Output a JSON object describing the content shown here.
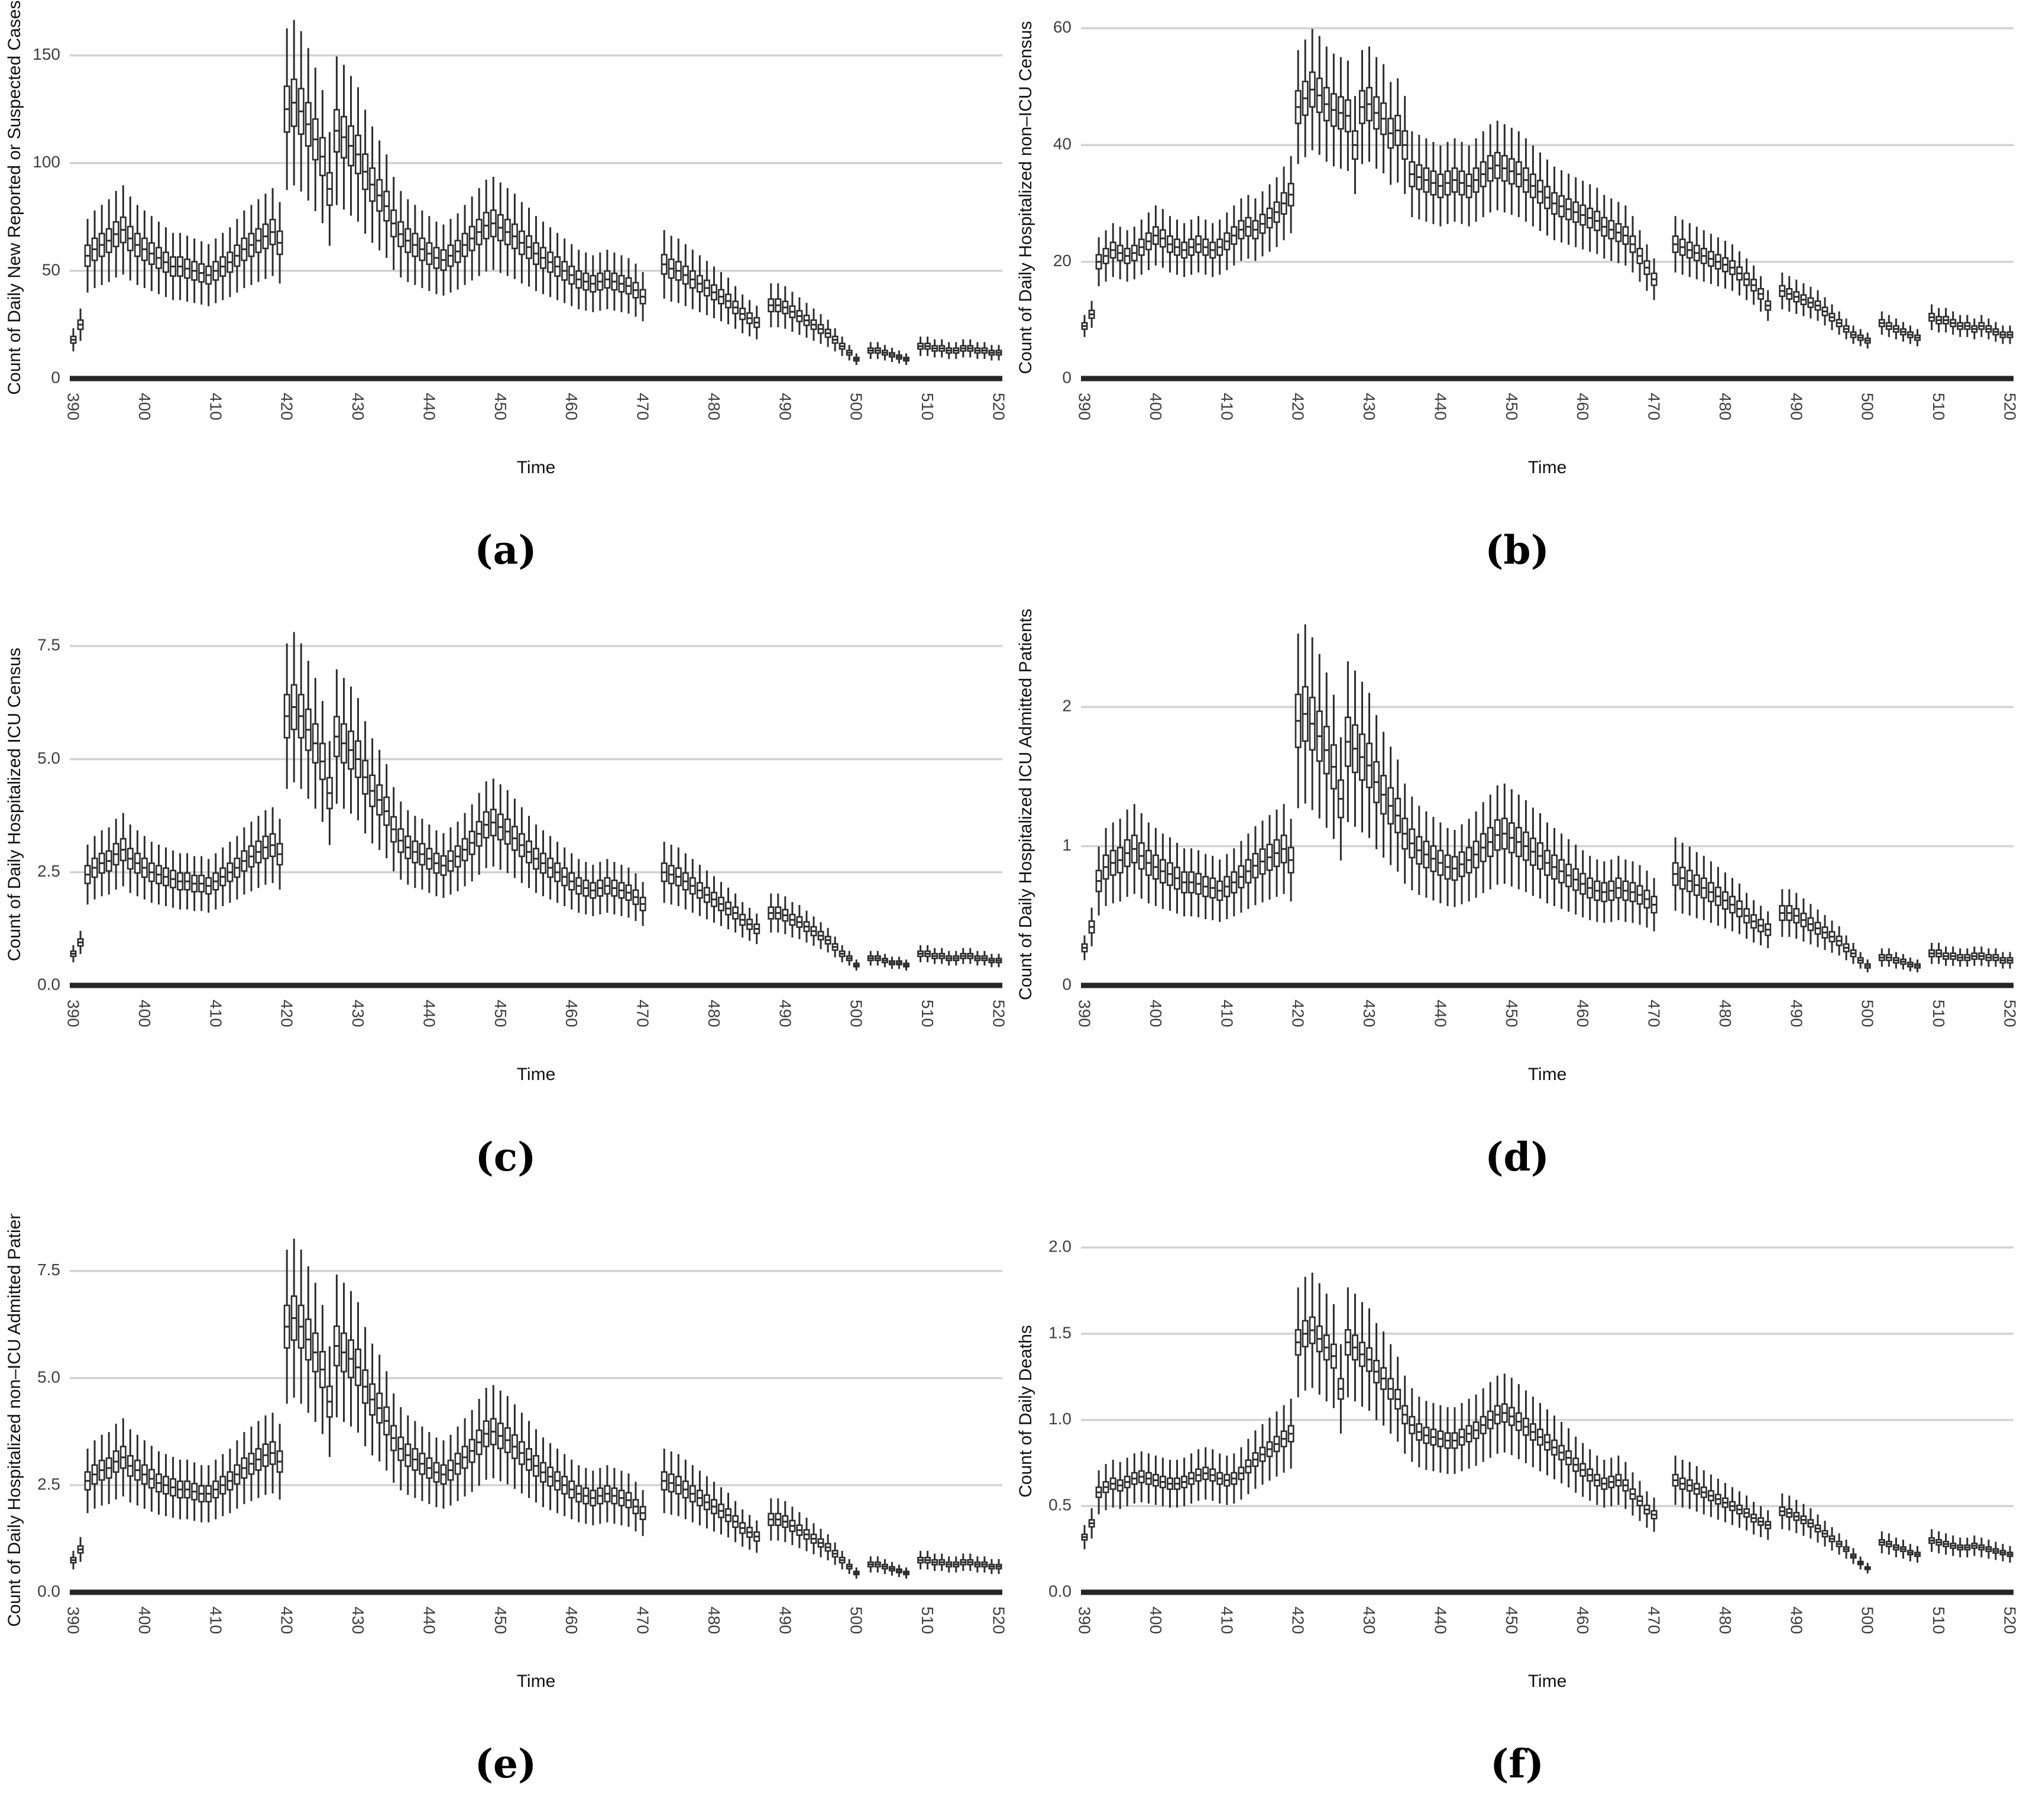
{
  "figure": {
    "background": "#ffffff",
    "layout": "2x3-grid-of-boxplot-panels",
    "captions": [
      "(a)",
      "(b)",
      "(c)",
      "(d)",
      "(e)",
      "(f)"
    ]
  },
  "style": {
    "box_color": "#2d2d2d",
    "grid_color": "#d2d2d2",
    "baseline_color": "#262626",
    "tick_color": "#3f3f3f",
    "title_color": "#111111",
    "box_fill": "#ffffff"
  },
  "chart_data": [
    {
      "id": "a",
      "caption": "(a)",
      "type": "boxplot",
      "xlabel": "Time",
      "ylabel": "Count of Daily New Reported or Suspected Cases",
      "x_start": 390,
      "x_step": 1,
      "x_end": 520,
      "xticks": [
        390,
        400,
        410,
        420,
        430,
        440,
        450,
        460,
        470,
        480,
        490,
        500,
        510,
        520
      ],
      "xtick_labels": [
        "390",
        "400",
        "410",
        "420",
        "430",
        "440",
        "450",
        "460",
        "470",
        "480",
        "490",
        "500",
        "510",
        "520"
      ],
      "yticks": [
        0,
        50,
        100,
        150
      ],
      "ytick_labels": [
        "0",
        "50",
        "100",
        "150"
      ],
      "ylim": [
        0,
        168
      ],
      "grid": "horizontal-only",
      "legend": "none",
      "whisker_frac": 0.3,
      "box_frac": 0.085,
      "gap_times": [
        471,
        472,
        487,
        501,
        508
      ],
      "medians": [
        18,
        25,
        57,
        60,
        62,
        64,
        67,
        69,
        65,
        62,
        60,
        58,
        56,
        54,
        52,
        52,
        51,
        50,
        49,
        48,
        50,
        52,
        54,
        57,
        60,
        62,
        64,
        66,
        68,
        63,
        125,
        128,
        124,
        118,
        111,
        103,
        88,
        115,
        112,
        108,
        104,
        96,
        90,
        85,
        80,
        72,
        67,
        64,
        62,
        60,
        58,
        56,
        55,
        57,
        59,
        62,
        65,
        68,
        71,
        72,
        70,
        68,
        66,
        63,
        61,
        58,
        56,
        54,
        52,
        50,
        48,
        46,
        45,
        44,
        45,
        46,
        45,
        44,
        43,
        41,
        38,
        null,
        null,
        53,
        51,
        50,
        48,
        46,
        44,
        42,
        40,
        38,
        36,
        33,
        30,
        28,
        26,
        null,
        34,
        34,
        33,
        31,
        29,
        27,
        25,
        23,
        21,
        18,
        15,
        12,
        9,
        null,
        13,
        13,
        12,
        11,
        10,
        9,
        null,
        15,
        15,
        14,
        14,
        13,
        13,
        14,
        14,
        13,
        13,
        12,
        12
      ]
    },
    {
      "id": "b",
      "caption": "(b)",
      "type": "boxplot",
      "xlabel": "Time",
      "ylabel": "Count of Daily Hospitalized non–ICU Census",
      "x_start": 390,
      "x_step": 1,
      "x_end": 520,
      "xticks": [
        390,
        400,
        410,
        420,
        430,
        440,
        450,
        460,
        470,
        480,
        490,
        500,
        510,
        520
      ],
      "xtick_labels": [
        "390",
        "400",
        "410",
        "420",
        "430",
        "440",
        "450",
        "460",
        "470",
        "480",
        "490",
        "500",
        "510",
        "520"
      ],
      "yticks": [
        0,
        20,
        40,
        60
      ],
      "ytick_labels": [
        "0",
        "20",
        "40",
        "60"
      ],
      "ylim": [
        0,
        62
      ],
      "grid": "horizontal-only",
      "legend": "none",
      "whisker_frac": 0.21,
      "box_frac": 0.06,
      "gap_times": [
        471,
        472,
        487,
        501,
        508
      ],
      "medians": [
        9,
        11,
        20,
        21,
        22,
        21.5,
        21,
        21.5,
        22.5,
        23.5,
        24.5,
        24,
        23,
        22.5,
        22,
        22.5,
        23,
        22.5,
        22,
        22.5,
        23.5,
        24.5,
        25.5,
        26,
        25.5,
        26.5,
        27.5,
        28.5,
        30,
        31.5,
        46.5,
        48,
        49.5,
        48.5,
        47,
        46,
        45.5,
        45,
        40,
        46.5,
        47,
        45.5,
        44.5,
        42,
        42.5,
        40,
        35,
        34.5,
        34,
        33.5,
        33,
        33.5,
        34,
        33.5,
        33,
        34,
        35,
        36,
        36.5,
        36,
        35.5,
        35,
        34,
        33,
        32,
        31,
        30,
        29.5,
        29,
        28.5,
        28,
        27.5,
        27,
        26,
        25.5,
        25,
        24.5,
        23,
        21,
        19,
        17,
        null,
        null,
        23,
        22.5,
        22,
        21.5,
        21,
        20.5,
        20,
        19.5,
        19,
        18,
        17,
        16,
        14.5,
        12.5,
        null,
        15,
        14.5,
        14,
        13.5,
        13,
        12.5,
        11.5,
        10.5,
        9.5,
        8.5,
        7.5,
        7,
        6.5,
        null,
        9.5,
        9,
        8.5,
        8,
        7.5,
        7,
        null,
        10.5,
        10,
        10,
        9.5,
        9,
        9,
        8.5,
        9,
        8.5,
        8,
        7.5,
        7.5
      ]
    },
    {
      "id": "c",
      "caption": "(c)",
      "type": "boxplot",
      "xlabel": "Time",
      "ylabel": "Count of Daily Hospitalized ICU Census",
      "x_start": 390,
      "x_step": 1,
      "x_end": 520,
      "xticks": [
        390,
        400,
        410,
        420,
        430,
        440,
        450,
        460,
        470,
        480,
        490,
        500,
        510,
        520
      ],
      "xtick_labels": [
        "390",
        "400",
        "410",
        "420",
        "430",
        "440",
        "450",
        "460",
        "470",
        "480",
        "490",
        "500",
        "510",
        "520"
      ],
      "yticks": [
        0,
        2.5,
        5,
        7.5
      ],
      "ytick_labels": [
        "0.0",
        "2.5",
        "5.0",
        "7.5"
      ],
      "ylim": [
        0,
        8.0
      ],
      "grid": "horizontal-only",
      "legend": "none",
      "whisker_frac": 0.27,
      "box_frac": 0.08,
      "gap_times": [
        471,
        472,
        487,
        501,
        508
      ],
      "medians": [
        0.7,
        0.95,
        2.45,
        2.6,
        2.7,
        2.75,
        2.9,
        3.0,
        2.8,
        2.7,
        2.6,
        2.5,
        2.45,
        2.4,
        2.35,
        2.3,
        2.3,
        2.25,
        2.25,
        2.2,
        2.3,
        2.4,
        2.5,
        2.6,
        2.75,
        2.85,
        2.95,
        3.05,
        3.1,
        2.9,
        5.95,
        6.15,
        5.95,
        5.65,
        5.35,
        4.95,
        4.25,
        5.5,
        5.35,
        5.2,
        5.0,
        4.6,
        4.3,
        4.1,
        3.85,
        3.45,
        3.2,
        3.05,
        2.95,
        2.9,
        2.8,
        2.7,
        2.65,
        2.75,
        2.85,
        3.0,
        3.15,
        3.35,
        3.55,
        3.6,
        3.5,
        3.4,
        3.25,
        3.1,
        2.95,
        2.8,
        2.7,
        2.6,
        2.5,
        2.4,
        2.3,
        2.2,
        2.15,
        2.1,
        2.15,
        2.2,
        2.15,
        2.1,
        2.05,
        1.95,
        1.8,
        null,
        null,
        2.5,
        2.45,
        2.4,
        2.3,
        2.2,
        2.1,
        2.0,
        1.9,
        1.8,
        1.7,
        1.6,
        1.45,
        1.35,
        1.25,
        null,
        1.6,
        1.6,
        1.55,
        1.45,
        1.4,
        1.3,
        1.2,
        1.1,
        1.0,
        0.85,
        0.7,
        0.6,
        0.45,
        null,
        0.6,
        0.6,
        0.55,
        0.5,
        0.5,
        0.45,
        null,
        0.7,
        0.7,
        0.65,
        0.65,
        0.6,
        0.6,
        0.65,
        0.65,
        0.6,
        0.6,
        0.55,
        0.55
      ]
    },
    {
      "id": "d",
      "caption": "(d)",
      "type": "boxplot",
      "xlabel": "Time",
      "ylabel": "Count of Daily Hospitalized ICU Admitted Patients",
      "x_start": 390,
      "x_step": 1,
      "x_end": 520,
      "xticks": [
        390,
        400,
        410,
        420,
        430,
        440,
        450,
        460,
        470,
        480,
        490,
        500,
        510,
        520
      ],
      "xtick_labels": [
        "390",
        "400",
        "410",
        "420",
        "430",
        "440",
        "450",
        "460",
        "470",
        "480",
        "490",
        "500",
        "510",
        "520"
      ],
      "yticks": [
        0,
        1,
        2
      ],
      "ytick_labels": [
        "0",
        "1",
        "2"
      ],
      "ylim": [
        0,
        2.6
      ],
      "grid": "horizontal-only",
      "legend": "none",
      "whisker_frac": 0.33,
      "box_frac": 0.1,
      "gap_times": [
        471,
        472,
        487,
        501,
        508
      ],
      "medians": [
        0.27,
        0.42,
        0.75,
        0.85,
        0.88,
        0.9,
        0.95,
        0.98,
        0.93,
        0.88,
        0.85,
        0.82,
        0.8,
        0.77,
        0.74,
        0.74,
        0.73,
        0.71,
        0.7,
        0.68,
        0.71,
        0.74,
        0.78,
        0.82,
        0.86,
        0.89,
        0.92,
        0.95,
        0.98,
        0.9,
        1.9,
        1.95,
        1.88,
        1.79,
        1.69,
        1.57,
        1.34,
        1.75,
        1.7,
        1.64,
        1.58,
        1.46,
        1.37,
        1.29,
        1.22,
        1.09,
        1.02,
        0.97,
        0.94,
        0.91,
        0.88,
        0.85,
        0.84,
        0.87,
        0.9,
        0.94,
        0.99,
        1.03,
        1.08,
        1.09,
        1.06,
        1.03,
        1.0,
        0.96,
        0.93,
        0.88,
        0.85,
        0.82,
        0.79,
        0.76,
        0.73,
        0.7,
        0.68,
        0.67,
        0.68,
        0.7,
        0.68,
        0.67,
        0.65,
        0.62,
        0.58,
        null,
        null,
        0.8,
        0.77,
        0.75,
        0.72,
        0.7,
        0.67,
        0.64,
        0.61,
        0.58,
        0.55,
        0.5,
        0.46,
        0.43,
        0.4,
        null,
        0.52,
        0.52,
        0.5,
        0.47,
        0.44,
        0.41,
        0.38,
        0.35,
        0.32,
        0.27,
        0.23,
        0.18,
        0.14,
        null,
        0.2,
        0.2,
        0.18,
        0.17,
        0.15,
        0.14,
        null,
        0.23,
        0.23,
        0.21,
        0.21,
        0.2,
        0.2,
        0.21,
        0.21,
        0.2,
        0.2,
        0.18,
        0.18
      ]
    },
    {
      "id": "e",
      "caption": "(e)",
      "type": "boxplot",
      "xlabel": "Time",
      "ylabel": "Count of Daily Hospitalized non–ICU Admitted Patients",
      "x_start": 390,
      "x_step": 1,
      "x_end": 520,
      "xticks": [
        390,
        400,
        410,
        420,
        430,
        440,
        450,
        460,
        470,
        480,
        490,
        500,
        510,
        520
      ],
      "xtick_labels": [
        "390",
        "400",
        "410",
        "420",
        "430",
        "440",
        "450",
        "460",
        "470",
        "480",
        "490",
        "500",
        "510",
        "520"
      ],
      "yticks": [
        0,
        2.5,
        5,
        7.5
      ],
      "ytick_labels": [
        "0.0",
        "2.5",
        "5.0",
        "7.5"
      ],
      "ylim": [
        0,
        8.45
      ],
      "grid": "horizontal-only",
      "legend": "none",
      "whisker_frac": 0.29,
      "box_frac": 0.08,
      "gap_times": [
        471,
        472,
        487,
        501,
        508
      ],
      "medians": [
        0.75,
        1.0,
        2.6,
        2.75,
        2.85,
        2.9,
        3.05,
        3.15,
        2.95,
        2.85,
        2.75,
        2.65,
        2.55,
        2.5,
        2.45,
        2.4,
        2.4,
        2.35,
        2.3,
        2.3,
        2.4,
        2.5,
        2.6,
        2.75,
        2.9,
        3.0,
        3.1,
        3.2,
        3.25,
        3.05,
        6.2,
        6.4,
        6.2,
        5.9,
        5.6,
        5.2,
        4.45,
        5.75,
        5.6,
        5.45,
        5.25,
        4.8,
        4.5,
        4.3,
        4.0,
        3.6,
        3.35,
        3.2,
        3.1,
        3.0,
        2.9,
        2.8,
        2.75,
        2.85,
        3.0,
        3.15,
        3.3,
        3.5,
        3.7,
        3.75,
        3.65,
        3.55,
        3.4,
        3.25,
        3.1,
        2.95,
        2.8,
        2.7,
        2.6,
        2.5,
        2.4,
        2.3,
        2.25,
        2.2,
        2.25,
        2.3,
        2.25,
        2.2,
        2.15,
        2.0,
        1.85,
        null,
        null,
        2.6,
        2.55,
        2.5,
        2.4,
        2.3,
        2.2,
        2.1,
        2.0,
        1.9,
        1.8,
        1.65,
        1.5,
        1.4,
        1.3,
        null,
        1.7,
        1.7,
        1.65,
        1.55,
        1.45,
        1.35,
        1.25,
        1.15,
        1.05,
        0.9,
        0.75,
        0.6,
        0.45,
        null,
        0.65,
        0.65,
        0.6,
        0.55,
        0.5,
        0.45,
        null,
        0.75,
        0.75,
        0.7,
        0.7,
        0.65,
        0.65,
        0.7,
        0.7,
        0.65,
        0.65,
        0.6,
        0.6
      ]
    },
    {
      "id": "f",
      "caption": "(f)",
      "type": "boxplot",
      "xlabel": "Time",
      "ylabel": "Count of Daily Deaths",
      "x_start": 390,
      "x_step": 1,
      "x_end": 520,
      "xticks": [
        390,
        400,
        410,
        420,
        430,
        440,
        450,
        460,
        470,
        480,
        490,
        500,
        510,
        520
      ],
      "xtick_labels": [
        "390",
        "400",
        "410",
        "420",
        "430",
        "440",
        "450",
        "460",
        "470",
        "480",
        "490",
        "500",
        "510",
        "520"
      ],
      "yticks": [
        0,
        0.5,
        1,
        1.5,
        2
      ],
      "ytick_labels": [
        "0.0",
        "0.5",
        "1.0",
        "1.5",
        "2.0"
      ],
      "ylim": [
        0,
        2.1
      ],
      "grid": "horizontal-only",
      "legend": "none",
      "whisker_frac": 0.22,
      "box_frac": 0.05,
      "gap_times": [
        471,
        472,
        487,
        501,
        508
      ],
      "medians": [
        0.32,
        0.4,
        0.58,
        0.61,
        0.63,
        0.62,
        0.64,
        0.66,
        0.67,
        0.66,
        0.65,
        0.64,
        0.63,
        0.63,
        0.64,
        0.66,
        0.68,
        0.69,
        0.68,
        0.66,
        0.65,
        0.66,
        0.69,
        0.73,
        0.77,
        0.8,
        0.83,
        0.86,
        0.89,
        0.92,
        1.45,
        1.5,
        1.52,
        1.47,
        1.42,
        1.37,
        1.18,
        1.45,
        1.42,
        1.38,
        1.35,
        1.28,
        1.24,
        1.18,
        1.12,
        1.03,
        0.97,
        0.93,
        0.91,
        0.9,
        0.89,
        0.88,
        0.88,
        0.9,
        0.92,
        0.94,
        0.97,
        1.0,
        1.03,
        1.04,
        1.02,
        0.99,
        0.96,
        0.93,
        0.9,
        0.87,
        0.84,
        0.81,
        0.78,
        0.74,
        0.71,
        0.68,
        0.65,
        0.63,
        0.64,
        0.65,
        0.62,
        0.57,
        0.53,
        0.48,
        0.45,
        null,
        null,
        0.65,
        0.63,
        0.62,
        0.6,
        0.58,
        0.56,
        0.54,
        0.52,
        0.5,
        0.48,
        0.46,
        0.43,
        0.41,
        0.39,
        null,
        0.47,
        0.46,
        0.44,
        0.42,
        0.4,
        0.37,
        0.34,
        0.31,
        0.28,
        0.25,
        0.21,
        0.17,
        0.14,
        null,
        0.29,
        0.28,
        0.26,
        0.25,
        0.23,
        0.22,
        null,
        0.3,
        0.29,
        0.28,
        0.27,
        0.26,
        0.26,
        0.27,
        0.26,
        0.25,
        0.24,
        0.23,
        0.22
      ]
    }
  ]
}
